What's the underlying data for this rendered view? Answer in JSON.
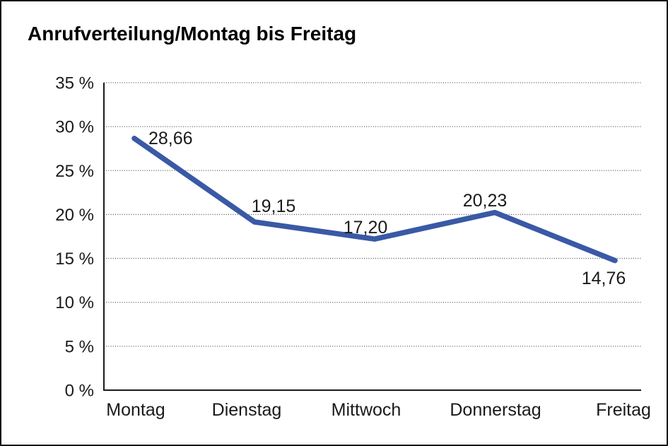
{
  "chart_data": {
    "type": "line",
    "title": "Anrufverteilung/Montag bis Freitag",
    "categories": [
      "Montag",
      "Dienstag",
      "Mittwoch",
      "Donnerstag",
      "Freitag"
    ],
    "series": [
      {
        "name": "",
        "values": [
          28.66,
          19.15,
          17.2,
          20.23,
          14.76
        ]
      }
    ],
    "data_labels": [
      "28,66",
      "19,15",
      "17,20",
      "20,23",
      "14,76"
    ],
    "xlabel": "",
    "ylabel": "",
    "ylim": [
      0,
      35
    ],
    "y_ticks": [
      {
        "value": 35,
        "label": "35 %"
      },
      {
        "value": 30,
        "label": "30 %"
      },
      {
        "value": 25,
        "label": "25 %"
      },
      {
        "value": 20,
        "label": "20 %"
      },
      {
        "value": 15,
        "label": "15 %"
      },
      {
        "value": 10,
        "label": "10 %"
      },
      {
        "value": 5,
        "label": "5 %"
      },
      {
        "value": 0,
        "label": "0 %"
      }
    ],
    "grid": "horizontal-dotted",
    "legend": "none",
    "line_color": "#3A59A6",
    "axis_color": "#1a1a1a",
    "gridline_color": "#555555",
    "text_color": "#1a1a1a"
  }
}
